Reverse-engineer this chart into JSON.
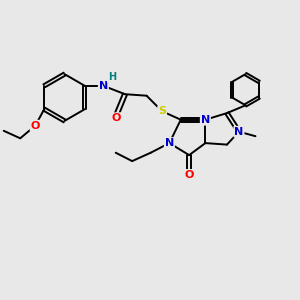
{
  "background_color": "#e8e8e8",
  "atom_colors": {
    "C": "#000000",
    "N": "#0000cc",
    "O": "#ff0000",
    "S": "#cccc00",
    "H": "#008080"
  },
  "lw": 1.4,
  "fs": 8.0,
  "fs_small": 7.0
}
